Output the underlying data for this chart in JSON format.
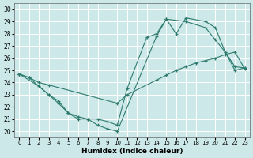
{
  "xlabel": "Humidex (Indice chaleur)",
  "xlim": [
    -0.5,
    23.5
  ],
  "ylim": [
    19.5,
    30.5
  ],
  "yticks": [
    20,
    21,
    22,
    23,
    24,
    25,
    26,
    27,
    28,
    29,
    30
  ],
  "xticks": [
    0,
    1,
    2,
    3,
    4,
    5,
    6,
    7,
    8,
    9,
    10,
    11,
    12,
    13,
    14,
    15,
    16,
    17,
    18,
    19,
    20,
    21,
    22,
    23
  ],
  "bg_color": "#cce8e8",
  "line_color": "#2e7b6e",
  "grid_color": "#ffffff",
  "series": {
    "line1": {
      "x": [
        0,
        2,
        3,
        4,
        5,
        6,
        7,
        8,
        9,
        10,
        14,
        15,
        17,
        19,
        20,
        21,
        22,
        23
      ],
      "y": [
        24.7,
        23.7,
        23.0,
        22.3,
        21.5,
        21.0,
        21.0,
        20.5,
        20.2,
        20.0,
        27.8,
        29.2,
        29.0,
        28.5,
        27.5,
        26.5,
        25.0,
        25.2
      ]
    },
    "line2": {
      "x": [
        0,
        1,
        3,
        4,
        5,
        6,
        7,
        8,
        9,
        10,
        11,
        13,
        14,
        15,
        16,
        17,
        19,
        20,
        21,
        22,
        23
      ],
      "y": [
        24.7,
        24.4,
        23.0,
        22.5,
        21.5,
        21.2,
        21.0,
        21.0,
        20.8,
        20.5,
        23.5,
        27.7,
        28.0,
        29.2,
        28.0,
        29.3,
        29.0,
        28.5,
        26.5,
        25.3,
        25.2
      ]
    },
    "line3": {
      "x": [
        0,
        1,
        2,
        3,
        10,
        11,
        14,
        15,
        16,
        17,
        18,
        19,
        20,
        21,
        22,
        23
      ],
      "y": [
        24.7,
        24.4,
        24.0,
        23.8,
        22.3,
        23.0,
        24.2,
        24.6,
        25.0,
        25.3,
        25.6,
        25.8,
        26.0,
        26.3,
        26.5,
        25.1
      ]
    }
  }
}
